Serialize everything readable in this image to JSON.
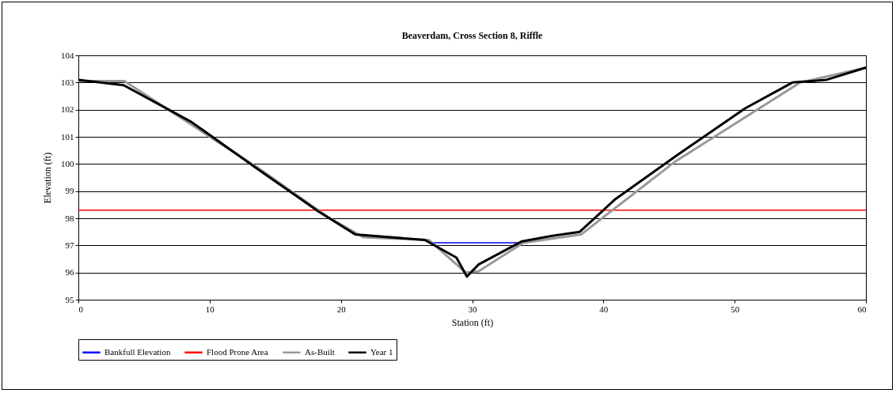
{
  "chart_data": {
    "type": "line",
    "title": "Beaverdam, Cross Section 8, Riffle",
    "xlabel": "Station (ft)",
    "ylabel": "Elevation (ft)",
    "xlim": [
      0,
      60
    ],
    "xticks": [
      0,
      10,
      20,
      30,
      40,
      50,
      60
    ],
    "ylim": [
      95,
      104
    ],
    "yticks": [
      95,
      96,
      97,
      98,
      99,
      100,
      101,
      102,
      103,
      104
    ],
    "grid": "y",
    "legend": "bottom",
    "marker": "none",
    "series": [
      {
        "name": "Bankfull Elevation",
        "color": "#0000ff",
        "x": [
          26.9,
          33.6
        ],
        "values": [
          97.1,
          97.1
        ]
      },
      {
        "name": "Flood Prone Area",
        "color": "#ff0000",
        "x": [
          0,
          60
        ],
        "values": [
          98.3,
          98.3
        ]
      },
      {
        "name": "As-Built",
        "color": "#999999",
        "x": [
          0,
          3.5,
          8.6,
          13.7,
          19,
          21.7,
          26.7,
          29.5,
          30.5,
          33.9,
          38.3,
          45.5,
          55,
          60
        ],
        "values": [
          103.05,
          103.05,
          101.45,
          99.85,
          98.05,
          97.3,
          97.2,
          96,
          96.05,
          97.1,
          97.4,
          100.1,
          103,
          103.55
        ]
      },
      {
        "name": "Year 1",
        "color": "#000000",
        "x": [
          0,
          3.45,
          8.6,
          13.7,
          18.3,
          21.1,
          26.4,
          28.8,
          29.6,
          30.5,
          33.8,
          36.1,
          38.2,
          40.9,
          45.7,
          50.8,
          54.4,
          57,
          60
        ],
        "values": [
          103.1,
          102.9,
          101.55,
          99.8,
          98.25,
          97.4,
          97.2,
          96.55,
          95.85,
          96.3,
          97.15,
          97.35,
          97.5,
          98.7,
          100.35,
          102.05,
          103,
          103.1,
          103.55
        ]
      }
    ]
  }
}
